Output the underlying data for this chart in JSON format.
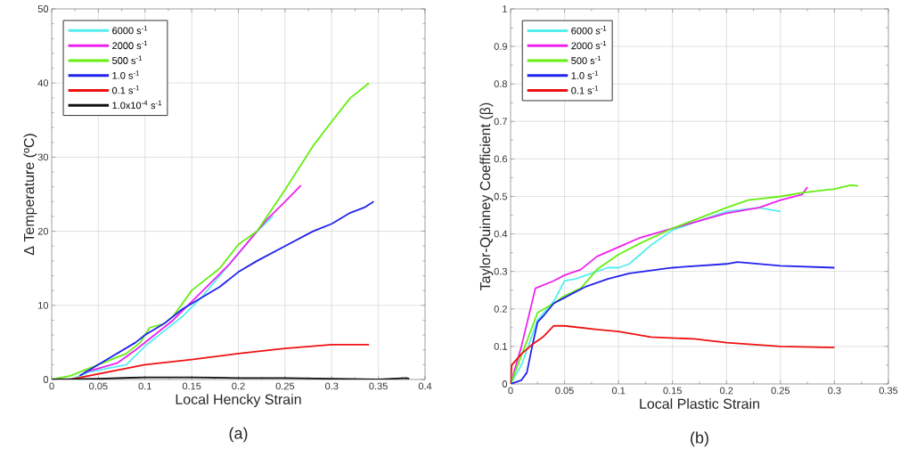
{
  "chart_data": [
    {
      "type": "line",
      "xlabel": "Local Hencky Strain",
      "ylabel": "Δ Temperature (ºC)",
      "annotations": [
        "(a)"
      ],
      "xlim": [
        0,
        0.4
      ],
      "ylim": [
        0,
        50
      ],
      "xticks": [
        0,
        0.05,
        0.1,
        0.15,
        0.2,
        0.25,
        0.3,
        0.35,
        0.4
      ],
      "yticks": [
        0,
        10,
        20,
        30,
        40,
        50
      ],
      "grid": true,
      "legend": "top left",
      "series": [
        {
          "name": "6000 s$^{-1}$",
          "color": "#55eeee",
          "x": [
            0.02,
            0.04,
            0.06,
            0.08,
            0.1,
            0.12,
            0.14,
            0.16,
            0.18,
            0.2,
            0.22,
            0.237
          ],
          "values": [
            0,
            1,
            1.5,
            2,
            4.5,
            6.5,
            8.5,
            11,
            14,
            17,
            20,
            22
          ]
        },
        {
          "name": "2000 s$^{-1}$",
          "color": "#ee22ee",
          "x": [
            0.035,
            0.05,
            0.07,
            0.09,
            0.11,
            0.13,
            0.15,
            0.17,
            0.19,
            0.21,
            0.23,
            0.25,
            0.267
          ],
          "values": [
            1,
            1.5,
            2.2,
            4,
            6,
            8,
            10.5,
            13,
            15.5,
            18.5,
            21.5,
            24,
            26.2
          ]
        },
        {
          "name": "500 s$^{-1}$",
          "color": "#66ee11",
          "x": [
            0,
            0.02,
            0.04,
            0.06,
            0.08,
            0.095,
            0.105,
            0.12,
            0.13,
            0.15,
            0.18,
            0.2,
            0.22,
            0.25,
            0.28,
            0.3,
            0.32,
            0.34
          ],
          "values": [
            0,
            0.5,
            1.5,
            2.5,
            3.5,
            5,
            7,
            7.5,
            8.5,
            12,
            15,
            18.2,
            20,
            25.6,
            31.5,
            34.8,
            38,
            40
          ]
        },
        {
          "name": "1.0 s$^{-1}$",
          "color": "#2222ee",
          "x": [
            0.03,
            0.05,
            0.07,
            0.09,
            0.1,
            0.12,
            0.14,
            0.16,
            0.18,
            0.2,
            0.22,
            0.25,
            0.28,
            0.3,
            0.32,
            0.335,
            0.345
          ],
          "values": [
            0.5,
            2,
            3.5,
            5,
            6,
            7.5,
            9.5,
            11,
            12.5,
            14.5,
            16,
            18,
            20,
            21,
            22.5,
            23.2,
            24
          ]
        },
        {
          "name": "0.1 s$^{-1}$",
          "color": "#ee1111",
          "x": [
            0.02,
            0.04,
            0.06,
            0.08,
            0.1,
            0.15,
            0.2,
            0.25,
            0.3,
            0.34
          ],
          "values": [
            0,
            0.5,
            1,
            1.5,
            2,
            2.7,
            3.5,
            4.2,
            4.7,
            4.7
          ]
        },
        {
          "name": "1.0x10$^{-4}$ s$^{-1}$",
          "color": "#111111",
          "x": [
            0,
            0.05,
            0.1,
            0.15,
            0.2,
            0.25,
            0.3,
            0.35,
            0.38,
            0.383
          ],
          "values": [
            0,
            0.1,
            0.3,
            0.3,
            0.2,
            0.2,
            0.1,
            0,
            0.2,
            0.1
          ]
        }
      ]
    },
    {
      "type": "line",
      "xlabel": "Local Plastic Strain",
      "ylabel": "Taylor-Quinney Coefficient (β)",
      "annotations": [
        "(b)"
      ],
      "xlim": [
        0,
        0.35
      ],
      "ylim": [
        0,
        1
      ],
      "xticks": [
        0,
        0.05,
        0.1,
        0.15,
        0.2,
        0.25,
        0.3,
        0.35
      ],
      "yticks": [
        0,
        0.1,
        0.2,
        0.3,
        0.4,
        0.5,
        0.6,
        0.7,
        0.8,
        0.9,
        1
      ],
      "grid": true,
      "legend": "top left",
      "series": [
        {
          "name": "6000 s$^{-1}$",
          "color": "#55eeee",
          "x": [
            0,
            0.01,
            0.025,
            0.04,
            0.05,
            0.06,
            0.07,
            0.09,
            0.1,
            0.11,
            0.13,
            0.15,
            0.17,
            0.2,
            0.23,
            0.25
          ],
          "values": [
            0,
            0.05,
            0.17,
            0.22,
            0.275,
            0.28,
            0.29,
            0.31,
            0.31,
            0.32,
            0.37,
            0.41,
            0.43,
            0.46,
            0.47,
            0.46
          ]
        },
        {
          "name": "2000 s$^{-1}$",
          "color": "#ee22ee",
          "x": [
            0,
            0.01,
            0.023,
            0.04,
            0.05,
            0.065,
            0.08,
            0.1,
            0.12,
            0.15,
            0.2,
            0.23,
            0.25,
            0.27,
            0.275
          ],
          "values": [
            0,
            0.1,
            0.255,
            0.275,
            0.29,
            0.305,
            0.34,
            0.365,
            0.39,
            0.415,
            0.455,
            0.47,
            0.49,
            0.505,
            0.525
          ]
        },
        {
          "name": "500 s$^{-1}$",
          "color": "#66ee11",
          "x": [
            0,
            0.025,
            0.04,
            0.05,
            0.065,
            0.08,
            0.1,
            0.12,
            0.15,
            0.2,
            0.22,
            0.25,
            0.27,
            0.3,
            0.315,
            0.322
          ],
          "values": [
            0,
            0.19,
            0.215,
            0.235,
            0.255,
            0.305,
            0.345,
            0.375,
            0.415,
            0.47,
            0.49,
            0.5,
            0.51,
            0.52,
            0.53,
            0.528
          ]
        },
        {
          "name": "1.0 s$^{-1}$",
          "color": "#2222ee",
          "x": [
            0,
            0.01,
            0.015,
            0.02,
            0.025,
            0.03,
            0.04,
            0.05,
            0.07,
            0.09,
            0.11,
            0.15,
            0.2,
            0.21,
            0.25,
            0.3
          ],
          "values": [
            0,
            0.01,
            0.03,
            0.1,
            0.165,
            0.18,
            0.215,
            0.23,
            0.26,
            0.28,
            0.295,
            0.31,
            0.32,
            0.325,
            0.315,
            0.31
          ]
        },
        {
          "name": "0.1 s$^{-1}$",
          "color": "#ee1111",
          "x": [
            0,
            0.001,
            0.01,
            0.02,
            0.03,
            0.04,
            0.05,
            0.08,
            0.1,
            0.13,
            0.17,
            0.2,
            0.25,
            0.3
          ],
          "values": [
            0,
            0.05,
            0.08,
            0.105,
            0.125,
            0.155,
            0.155,
            0.145,
            0.14,
            0.125,
            0.12,
            0.11,
            0.1,
            0.097
          ]
        }
      ]
    }
  ]
}
